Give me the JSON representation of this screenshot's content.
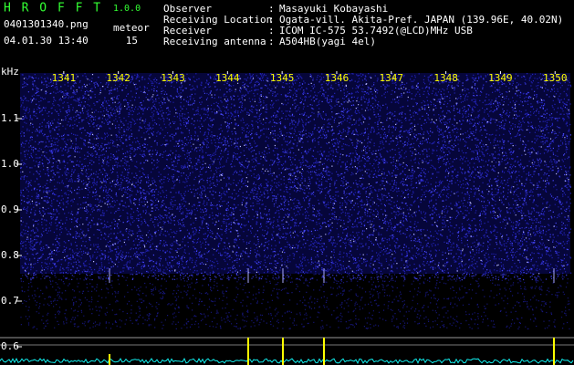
{
  "header": {
    "app": "H R O F F T",
    "version": "1.0.0",
    "file": "0401301340.png",
    "datetime": "04.01.30 13:40",
    "meteor_label": "meteor",
    "meteor_count": 15
  },
  "info": {
    "separator": ":",
    "rows": [
      {
        "label": "Observer",
        "value": "Masayuki Kobayashi"
      },
      {
        "label": "Receiving Location",
        "value": "Ogata-vill. Akita-Pref. JAPAN (139.96E, 40.02N)"
      },
      {
        "label": "Receiver",
        "value": "ICOM IC-575 53.7492(@LCD)MHz USB"
      },
      {
        "label": "Receiving antenna",
        "value": "A504HB(yagi 4el)"
      }
    ]
  },
  "spectrogram": {
    "y_unit": "kHz",
    "ylim": [
      0.56,
      1.2
    ],
    "yticks": [
      1.1,
      {
        "value": 1,
        "label": "1.0"
      },
      0.9,
      0.8,
      0.7,
      0.6
    ],
    "xlim": [
      1340.2,
      1350.28
    ],
    "xticks": [
      1341,
      1342,
      1343,
      1344,
      1345,
      1346,
      1347,
      1348,
      1349,
      1350
    ]
  }
}
